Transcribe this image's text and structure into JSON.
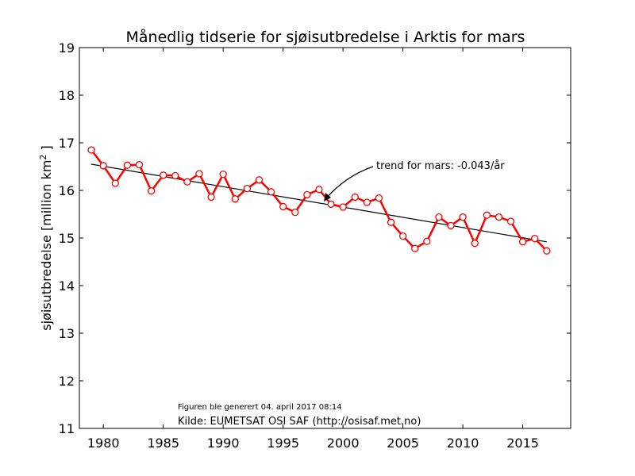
{
  "chart_data": {
    "type": "line",
    "title": "Månedlig tidserie for sjøisutbredelse i Arktis for mars",
    "xlabel": "",
    "ylabel": "sjøisutbredelse [million km",
    "ylabel_sup": "2",
    "ylabel_end": " ]",
    "xlim": [
      1978,
      2019
    ],
    "ylim": [
      11,
      19
    ],
    "xticks": [
      1980,
      1985,
      1990,
      1995,
      2000,
      2005,
      2010,
      2015
    ],
    "yticks": [
      11,
      12,
      13,
      14,
      15,
      16,
      17,
      18,
      19
    ],
    "grid": false,
    "series": [
      {
        "color": "#ff0000",
        "marker": "open-circle",
        "x": [
          1979,
          1980,
          1981,
          1982,
          1983,
          1984,
          1985,
          1986,
          1987,
          1988,
          1989,
          1990,
          1991,
          1992,
          1993,
          1994,
          1995,
          1996,
          1997,
          1998,
          1999,
          2000,
          2001,
          2002,
          2003,
          2004,
          2005,
          2006,
          2007,
          2008,
          2009,
          2010,
          2011,
          2012,
          2013,
          2014,
          2015,
          2016,
          2017
        ],
        "y": [
          16.85,
          16.52,
          16.15,
          16.53,
          16.54,
          15.99,
          16.32,
          16.31,
          16.18,
          16.35,
          15.86,
          16.34,
          15.82,
          16.04,
          16.22,
          15.97,
          15.66,
          15.54,
          15.91,
          16.02,
          15.71,
          15.65,
          15.86,
          15.75,
          15.84,
          15.33,
          15.04,
          14.78,
          14.93,
          15.44,
          15.26,
          15.44,
          14.89,
          15.48,
          15.44,
          15.35,
          14.92,
          14.99,
          14.73
        ]
      }
    ],
    "trend": {
      "color": "#000000",
      "x": [
        1979,
        2017
      ],
      "y": [
        16.55,
        14.92
      ],
      "label": "trend for mars: -0.043/år"
    },
    "annotations": {
      "generated": "Figuren ble generert 04. april 2017 08:14",
      "source": "Kilde: EUMETSAT OSI SAF (http://osisaf.met.no)"
    }
  }
}
